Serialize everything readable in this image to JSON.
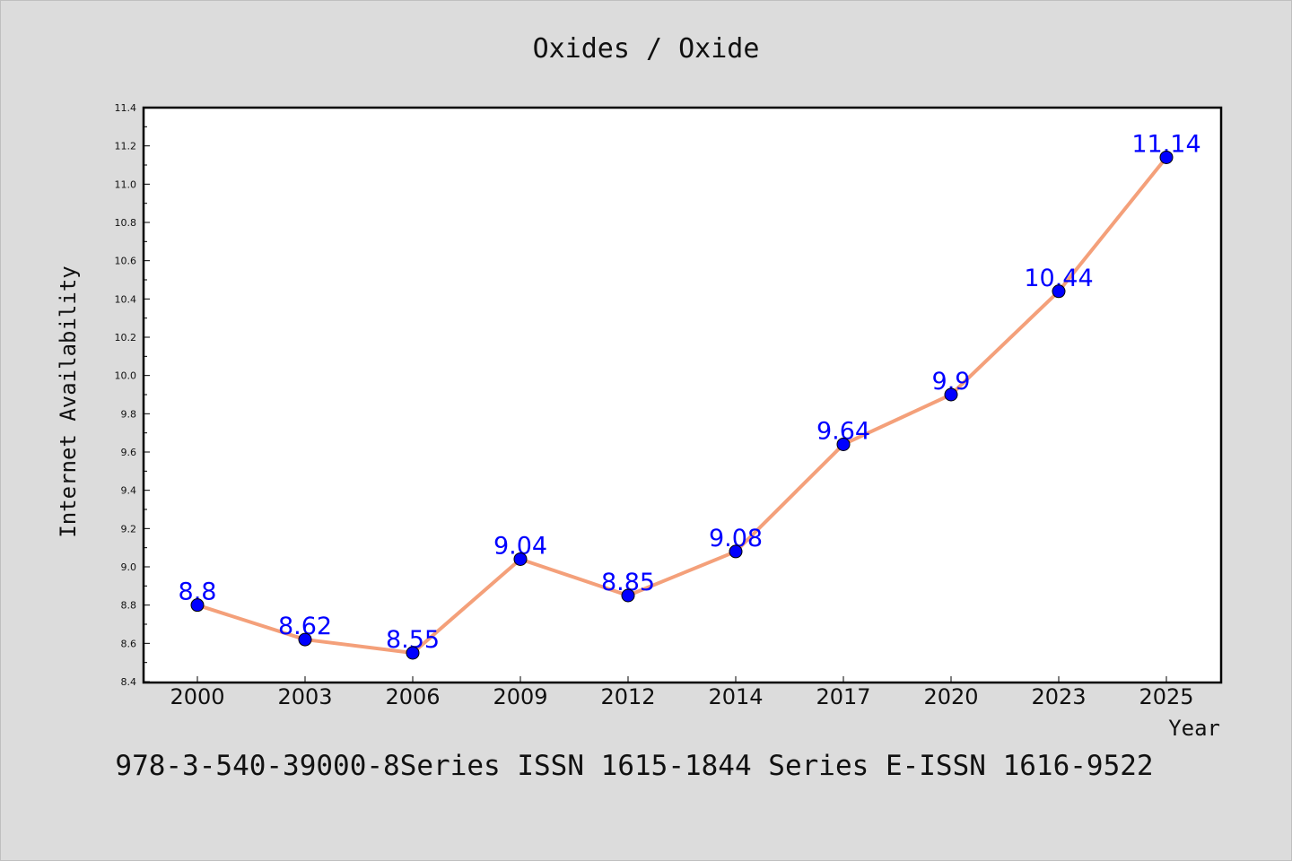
{
  "chart_data": {
    "type": "line",
    "title": "Oxides / Oxide",
    "xlabel": "Year",
    "ylabel": "Internet Availability",
    "categories": [
      "2000",
      "2003",
      "2006",
      "2009",
      "2012",
      "2014",
      "2017",
      "2020",
      "2023",
      "2025"
    ],
    "series": [
      {
        "values": [
          8.8,
          8.62,
          8.55,
          9.04,
          8.85,
          9.08,
          9.64,
          9.9,
          10.44,
          11.14
        ],
        "labels": [
          "8.8",
          "8.62",
          "8.55",
          "9.04",
          "8.85",
          "9.08",
          "9.64",
          "9.9",
          "10.44",
          "11.14"
        ],
        "line_color": "#f4a07a",
        "marker_color": "#0000ff",
        "label_color": "#0000ff"
      }
    ],
    "ylim": [
      8.4,
      11.4
    ],
    "yticks": [
      "8.4",
      "8.6",
      "8.8",
      "9.0",
      "9.2",
      "9.4",
      "9.6",
      "9.8",
      "10.0",
      "10.2",
      "10.4",
      "10.6",
      "10.8",
      "11.0",
      "11.2",
      "11.4"
    ],
    "grid": false,
    "legend": "none"
  },
  "caption": "978-3-540-39000-8Series ISSN 1615-1844 Series E-ISSN 1616-9522",
  "colors": {
    "background": "#dcdcdc",
    "plot_background": "#ffffff",
    "axis": "#000000"
  }
}
